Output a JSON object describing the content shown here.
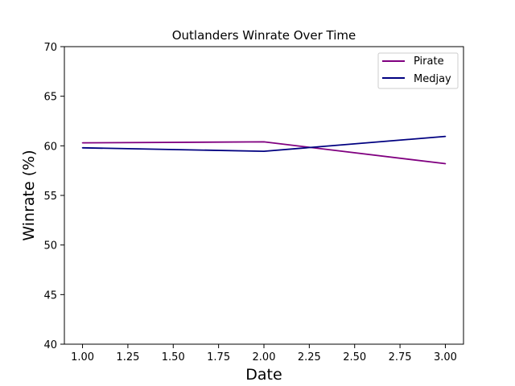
{
  "chart_data": {
    "type": "line",
    "title": "Outlanders Winrate Over Time",
    "xlabel": "Date",
    "ylabel": "Winrate (%)",
    "xlim": [
      0.9,
      3.1
    ],
    "ylim": [
      40,
      70
    ],
    "xticks": [
      1.0,
      1.25,
      1.5,
      1.75,
      2.0,
      2.25,
      2.5,
      2.75,
      3.0
    ],
    "xtick_labels": [
      "1.00",
      "1.25",
      "1.50",
      "1.75",
      "2.00",
      "2.25",
      "2.50",
      "2.75",
      "3.00"
    ],
    "yticks": [
      40,
      45,
      50,
      55,
      60,
      65,
      70
    ],
    "ytick_labels": [
      "40",
      "45",
      "50",
      "55",
      "60",
      "65",
      "70"
    ],
    "grid": false,
    "legend_position": "top-right",
    "series": [
      {
        "name": "Pirate",
        "color": "#800080",
        "x": [
          1,
          2,
          3
        ],
        "y": [
          60.3,
          60.4,
          58.2
        ]
      },
      {
        "name": "Medjay",
        "color": "#000080",
        "x": [
          1,
          2,
          3
        ],
        "y": [
          59.8,
          59.45,
          60.95
        ]
      }
    ]
  }
}
